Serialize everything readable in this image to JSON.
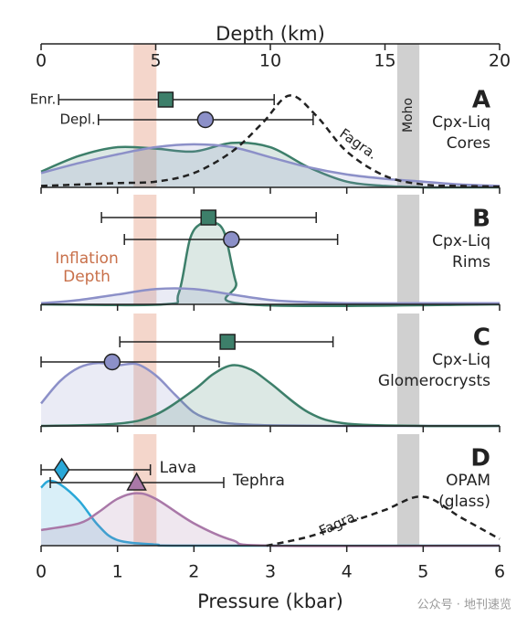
{
  "chart_data": [
    {
      "type": "density",
      "letter": "A",
      "label": [
        "Cpx-Liq",
        "Cores"
      ],
      "xlim": [
        0,
        6
      ],
      "xticks": [
        0,
        1,
        2,
        3,
        4,
        5,
        6
      ],
      "x2label": "Depth (km)",
      "x2lim": [
        0,
        20
      ],
      "x2ticks": [
        0,
        5,
        10,
        15,
        20
      ],
      "bands": [
        {
          "range": [
            1.21,
            1.51
          ],
          "color": "#f2cfc2"
        },
        {
          "name": "Moho",
          "range": [
            4.66,
            4.95
          ],
          "color": "#c8c8c8"
        }
      ],
      "series": [
        {
          "color": "#3d7f6a",
          "x": [
            0,
            0.5,
            1,
            1.5,
            2,
            2.5,
            3,
            3.5,
            4,
            4.5,
            5,
            5.5,
            6
          ],
          "values": [
            0.11,
            0.22,
            0.28,
            0.27,
            0.25,
            0.31,
            0.28,
            0.14,
            0.04,
            0.01,
            0,
            0,
            0
          ]
        },
        {
          "color": "#8c90c8",
          "x": [
            0,
            0.5,
            1,
            1.5,
            2,
            2.5,
            3,
            3.5,
            4,
            4.5,
            5,
            5.5,
            6
          ],
          "values": [
            0.1,
            0.17,
            0.23,
            0.28,
            0.3,
            0.28,
            0.21,
            0.14,
            0.09,
            0.06,
            0.04,
            0.02,
            0.01
          ]
        },
        {
          "name": "Fagra.",
          "color": "#222222",
          "dashed": true,
          "x": [
            0,
            0.5,
            1,
            1.5,
            2,
            2.5,
            2.9,
            3.25,
            3.6,
            4,
            4.5,
            5,
            5.5,
            6
          ],
          "values": [
            0.01,
            0.02,
            0.03,
            0.04,
            0.1,
            0.25,
            0.45,
            0.64,
            0.5,
            0.25,
            0.08,
            0.02,
            0.01,
            0.005
          ]
        }
      ],
      "points": [
        {
          "name": "Enr.",
          "marker": "square",
          "color": "#3d7f6a",
          "x": 1.63,
          "range": [
            0.23,
            3.05
          ]
        },
        {
          "name": "Depl.",
          "marker": "circle",
          "color": "#8c90c8",
          "x": 2.15,
          "range": [
            0.75,
            3.56
          ]
        }
      ]
    },
    {
      "type": "density",
      "letter": "B",
      "label": [
        "Cpx-Liq",
        "Rims"
      ],
      "xlim": [
        0,
        6
      ],
      "xticks": [
        0,
        1,
        2,
        3,
        4,
        5,
        6
      ],
      "bands": [
        {
          "name": [
            "Inflation",
            "Depth"
          ],
          "range": [
            1.21,
            1.51
          ],
          "color": "#f2cfc2"
        },
        {
          "range": [
            4.66,
            4.95
          ],
          "color": "#c8c8c8"
        }
      ],
      "series": [
        {
          "color": "#3d7f6a",
          "x": [
            0,
            1.6,
            1.8,
            1.95,
            2.1,
            2.25,
            2.4,
            2.55,
            2.7,
            6
          ],
          "values": [
            0,
            0,
            0.1,
            0.6,
            0.74,
            0.75,
            0.65,
            0.2,
            0,
            0
          ]
        },
        {
          "color": "#8c90c8",
          "x": [
            0,
            0.5,
            1,
            1.5,
            2,
            2.5,
            3,
            3.5,
            4,
            5,
            6
          ],
          "values": [
            0.01,
            0.04,
            0.09,
            0.14,
            0.14,
            0.09,
            0.04,
            0.02,
            0.01,
            0.01,
            0.01
          ]
        }
      ],
      "points": [
        {
          "marker": "square",
          "color": "#3d7f6a",
          "x": 2.19,
          "range": [
            0.79,
            3.6
          ]
        },
        {
          "marker": "circle",
          "color": "#8c90c8",
          "x": 2.49,
          "range": [
            1.09,
            3.88
          ]
        }
      ]
    },
    {
      "type": "density",
      "letter": "C",
      "label": [
        "Cpx-Liq",
        "Glomerocrysts"
      ],
      "xlim": [
        0,
        6
      ],
      "xticks": [
        0,
        1,
        2,
        3,
        4,
        5,
        6
      ],
      "bands": [
        {
          "range": [
            1.21,
            1.51
          ],
          "color": "#f2cfc2"
        },
        {
          "range": [
            4.66,
            4.95
          ],
          "color": "#c8c8c8"
        }
      ],
      "series": [
        {
          "color": "#8c90c8",
          "x": [
            0,
            0.25,
            0.5,
            0.75,
            1,
            1.25,
            1.5,
            1.75,
            2,
            2.25,
            2.5,
            3,
            4,
            5,
            6
          ],
          "values": [
            0.2,
            0.4,
            0.52,
            0.56,
            0.54,
            0.55,
            0.45,
            0.28,
            0.12,
            0.05,
            0.02,
            0.005,
            0,
            0,
            0
          ]
        },
        {
          "color": "#3d7f6a",
          "x": [
            0,
            1,
            1.5,
            2,
            2.25,
            2.5,
            2.75,
            3,
            3.5,
            4,
            5,
            6
          ],
          "values": [
            0,
            0.02,
            0.1,
            0.32,
            0.46,
            0.54,
            0.5,
            0.38,
            0.12,
            0.02,
            0,
            0
          ]
        }
      ],
      "points": [
        {
          "marker": "square",
          "color": "#3d7f6a",
          "x": 2.44,
          "range": [
            1.03,
            3.82
          ]
        },
        {
          "marker": "circle",
          "color": "#8c90c8",
          "x": 0.93,
          "range": [
            0,
            2.33
          ]
        }
      ]
    },
    {
      "type": "density",
      "letter": "D",
      "label": [
        "OPAM",
        "(glass)"
      ],
      "xlim": [
        0,
        6
      ],
      "xticks": [
        0,
        1,
        2,
        3,
        4,
        5,
        6
      ],
      "xlabel": "Pressure (kbar)",
      "bands": [
        {
          "range": [
            1.21,
            1.51
          ],
          "color": "#f2cfc2"
        },
        {
          "range": [
            4.66,
            4.95
          ],
          "color": "#c8c8c8"
        }
      ],
      "series": [
        {
          "color": "#2aa8d8",
          "x": [
            0,
            0.1,
            0.25,
            0.5,
            0.75,
            1,
            1.5,
            2,
            6
          ],
          "values": [
            0.52,
            0.58,
            0.55,
            0.4,
            0.18,
            0.05,
            0.01,
            0,
            0
          ]
        },
        {
          "color": "#a978a8",
          "x": [
            0,
            0.5,
            0.75,
            1,
            1.25,
            1.5,
            2,
            2.5,
            3,
            6
          ],
          "values": [
            0.14,
            0.2,
            0.3,
            0.42,
            0.47,
            0.42,
            0.2,
            0.05,
            0,
            0
          ]
        },
        {
          "name": "Fagra.",
          "color": "#222222",
          "dashed": true,
          "x": [
            2.95,
            3.5,
            4,
            4.5,
            5,
            5.5,
            6
          ],
          "values": [
            0,
            0.08,
            0.2,
            0.32,
            0.44,
            0.25,
            0.06
          ]
        }
      ],
      "points": [
        {
          "name": "Lava",
          "marker": "diamond",
          "color": "#2aa8d8",
          "x": 0.27,
          "range": [
            0,
            1.43
          ]
        },
        {
          "name": "Tephra",
          "marker": "triangle",
          "color": "#a978a8",
          "x": 1.25,
          "range": [
            0.12,
            2.39
          ]
        }
      ]
    }
  ],
  "watermark": "公众号 · 地刊速览"
}
